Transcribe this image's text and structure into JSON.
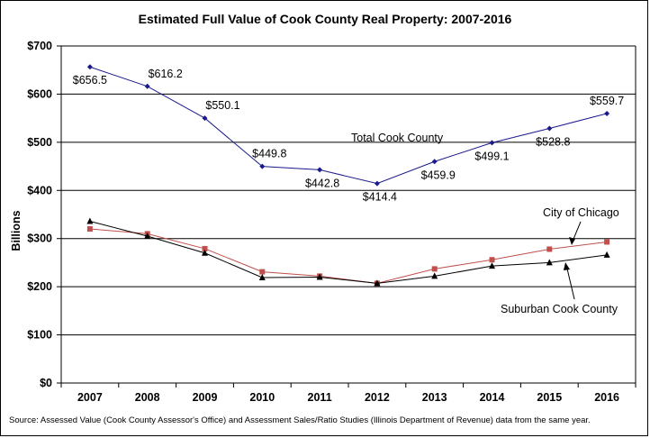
{
  "chart_data": {
    "type": "line",
    "title": "Estimated Full Value of Cook County Real Property: 2007-2016",
    "ylabel": "Billions",
    "xlabel": "",
    "categories": [
      "2007",
      "2008",
      "2009",
      "2010",
      "2011",
      "2012",
      "2013",
      "2014",
      "2015",
      "2016"
    ],
    "y_ticks": [
      "$0",
      "$100",
      "$200",
      "$300",
      "$400",
      "$500",
      "$600",
      "$700"
    ],
    "ylim": [
      0,
      700
    ],
    "grid": true,
    "series": [
      {
        "name": "Total Cook County",
        "color": "#1a1a8c",
        "marker": "diamond",
        "values": [
          656.5,
          616.2,
          550.1,
          449.8,
          442.8,
          414.4,
          459.9,
          499.1,
          528.8,
          559.7
        ],
        "labels": [
          "$656.5",
          "$616.2",
          "$550.1",
          "$449.8",
          "$442.8",
          "$414.4",
          "$459.9",
          "$499.1",
          "$528.8",
          "$559.7"
        ]
      },
      {
        "name": "City of Chicago",
        "color": "#c0504d",
        "marker": "square",
        "values": [
          320,
          310,
          279,
          231,
          222,
          207,
          237,
          256,
          278,
          293
        ]
      },
      {
        "name": "Suburban Cook County",
        "color": "#000000",
        "marker": "triangle",
        "values": [
          336,
          305,
          270,
          219,
          220,
          207,
          222,
          243,
          250,
          266
        ]
      }
    ],
    "source": "Source: Assessed Value (Cook County Assessor's Office) and Assessment Sales/Ratio Studies (Illinois Department of Revenue) data from the same year."
  }
}
